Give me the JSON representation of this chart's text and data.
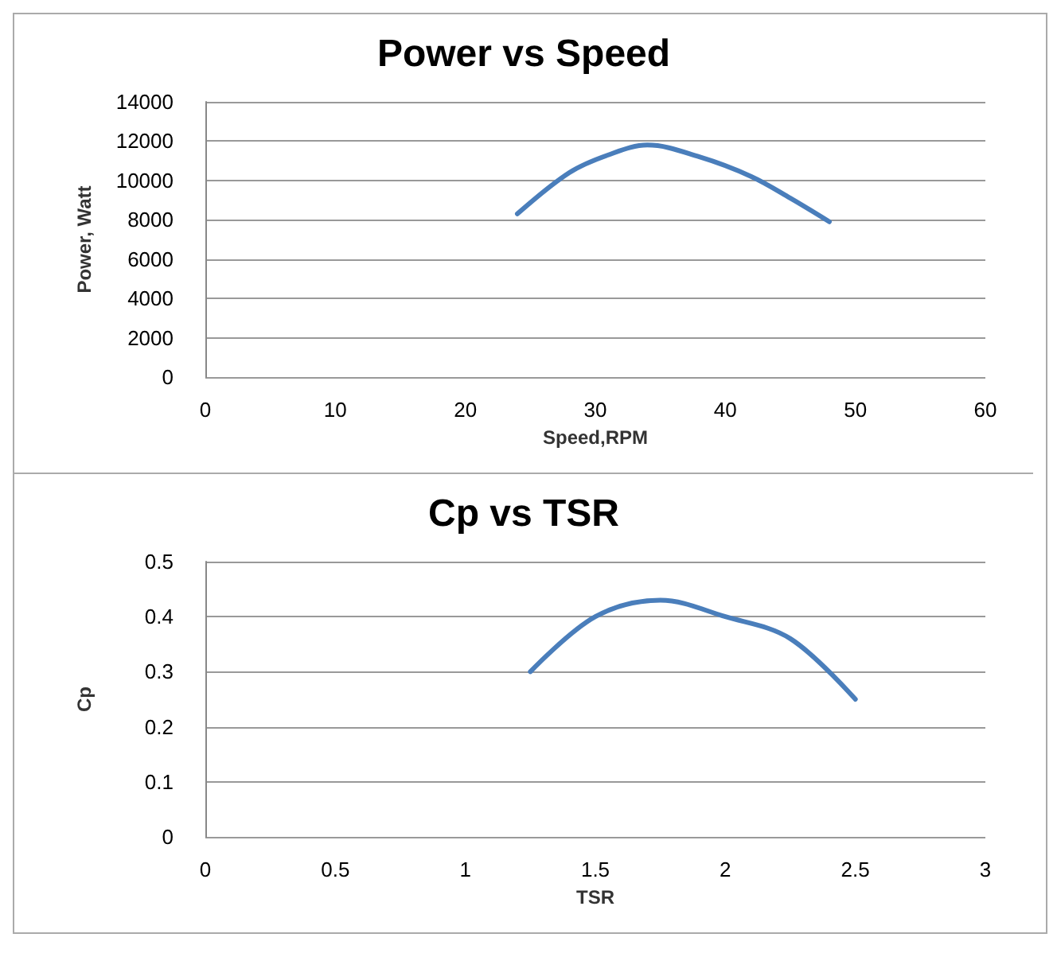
{
  "chart_data": [
    {
      "type": "line",
      "title": "Power vs Speed",
      "xlabel": "Speed,RPM",
      "ylabel": "Power, Watt",
      "x": [
        24,
        28,
        31,
        34,
        38,
        42,
        45,
        48
      ],
      "series": [
        {
          "color": "#4a7ebb",
          "values": [
            8300,
            10400,
            11300,
            11800,
            11200,
            10200,
            9100,
            7900
          ]
        }
      ],
      "xlim": [
        0,
        60
      ],
      "xticks": [
        0,
        10,
        20,
        30,
        40,
        50,
        60
      ],
      "ylim": [
        0,
        14000
      ],
      "yticks": [
        0,
        2000,
        4000,
        6000,
        8000,
        10000,
        12000,
        14000
      ],
      "grid": "y",
      "marker": "none",
      "line_style": "solid"
    },
    {
      "type": "line",
      "title": "Cp vs TSR",
      "xlabel": "TSR",
      "ylabel": "Cp",
      "x": [
        1.25,
        1.5,
        1.75,
        2,
        2.25,
        2.5
      ],
      "series": [
        {
          "color": "#4a7ebb",
          "values": [
            0.3,
            0.4,
            0.43,
            0.4,
            0.36,
            0.25
          ]
        }
      ],
      "xlim": [
        0,
        3
      ],
      "xticks": [
        0,
        0.5,
        1,
        1.5,
        2,
        2.5,
        3
      ],
      "ylim": [
        0,
        0.5
      ],
      "yticks": [
        0,
        0.1,
        0.2,
        0.3,
        0.4,
        0.5
      ],
      "grid": "y",
      "marker": "none",
      "line_style": "solid"
    }
  ]
}
